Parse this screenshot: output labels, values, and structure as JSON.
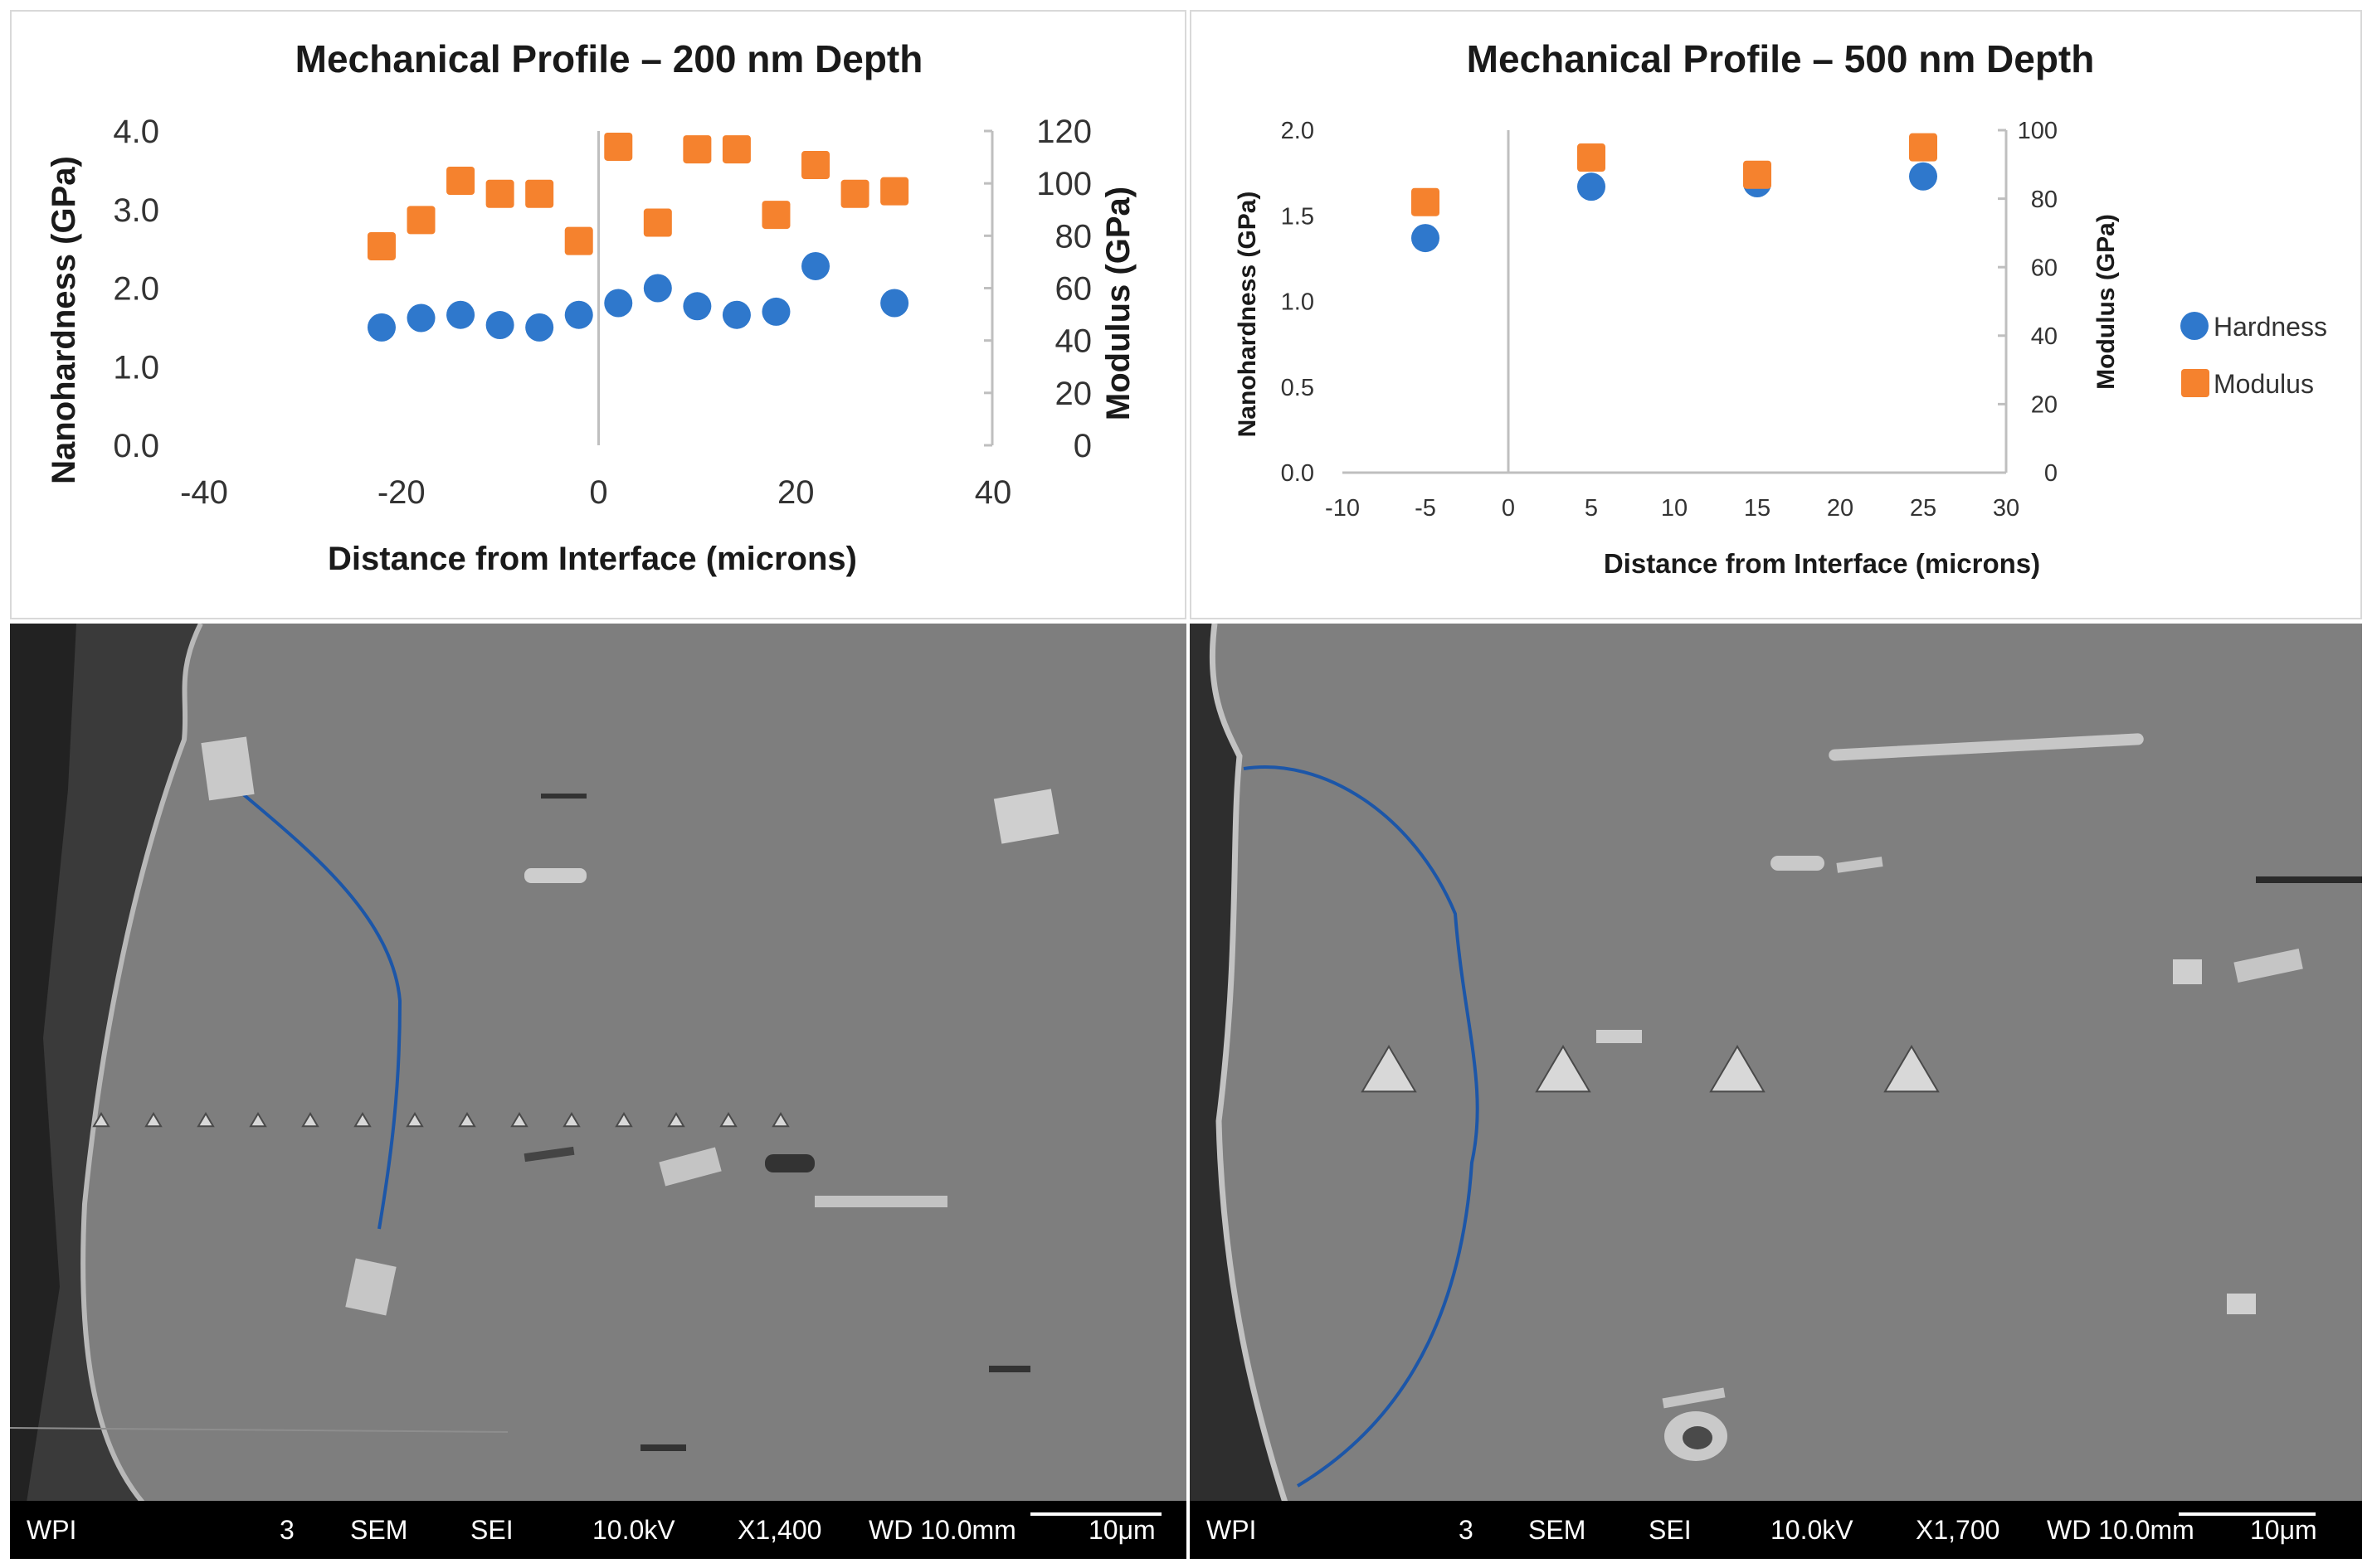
{
  "chart_data": [
    {
      "type": "scatter",
      "title": "Mechanical Profile – 200 nm Depth",
      "xlabel": "Distance from Interface (microns)",
      "ylabel": "Nanohardness (GPa)",
      "y2label": "Modulus (GPa)",
      "xlim": [
        -40,
        40
      ],
      "ylim": [
        0,
        4
      ],
      "y2lim": [
        0,
        120
      ],
      "x_ticks": [
        "-40",
        "-20",
        "0",
        "20",
        "40"
      ],
      "y_ticks": [
        "0.0",
        "1.0",
        "2.0",
        "3.0",
        "4.0"
      ],
      "y2_ticks": [
        "0",
        "20",
        "40",
        "60",
        "80",
        "100",
        "120"
      ],
      "grid": false,
      "series": [
        {
          "name": "Hardness",
          "axis": "left",
          "color": "#2f78cc",
          "marker": "circle",
          "x": [
            -22,
            -18,
            -14,
            -10,
            -6,
            -2,
            2,
            6,
            10,
            14,
            18,
            22,
            30
          ],
          "y": [
            1.5,
            1.62,
            1.66,
            1.53,
            1.5,
            1.66,
            1.81,
            2.0,
            1.77,
            1.66,
            1.7,
            2.28,
            1.81
          ]
        },
        {
          "name": "Modulus",
          "axis": "right",
          "color": "#f5822e",
          "marker": "square",
          "x": [
            -22,
            -18,
            -14,
            -10,
            -6,
            -2,
            2,
            6,
            10,
            14,
            18,
            22,
            26,
            30
          ],
          "y": [
            76,
            86,
            101,
            96,
            96,
            78,
            114,
            85,
            113,
            113,
            88,
            107,
            96,
            97
          ]
        }
      ]
    },
    {
      "type": "scatter",
      "title": "Mechanical Profile – 500 nm Depth",
      "xlabel": "Distance from Interface (microns)",
      "ylabel": "Nanohardness (GPa)",
      "y2label": "Modulus (GPa)",
      "xlim": [
        -10,
        30
      ],
      "ylim": [
        0,
        2
      ],
      "y2lim": [
        0,
        100
      ],
      "x_ticks": [
        "-10",
        "-5",
        "0",
        "5",
        "10",
        "15",
        "20",
        "25",
        "30"
      ],
      "y_ticks": [
        "0.0",
        "0.5",
        "1.0",
        "1.5",
        "2.0"
      ],
      "y2_ticks": [
        "0",
        "20",
        "40",
        "60",
        "80",
        "100"
      ],
      "grid": false,
      "legend_position": "right",
      "legend": [
        "Hardness",
        "Modulus"
      ],
      "series": [
        {
          "name": "Hardness",
          "axis": "left",
          "color": "#2f78cc",
          "marker": "circle",
          "x": [
            -5,
            5,
            15,
            25
          ],
          "y": [
            1.37,
            1.67,
            1.69,
            1.73
          ]
        },
        {
          "name": "Modulus",
          "axis": "right",
          "color": "#f5822e",
          "marker": "square",
          "x": [
            -5,
            5,
            15,
            25
          ],
          "y": [
            79,
            92,
            87,
            95
          ]
        }
      ]
    }
  ],
  "sem_images": [
    {
      "labels": [
        "WPI",
        "3",
        "SEM",
        "SEI",
        "10.0kV",
        "X1,400",
        "WD 10.0mm",
        "10μm"
      ],
      "indent_count": 14
    },
    {
      "labels": [
        "WPI",
        "3",
        "SEM",
        "SEI",
        "10.0kV",
        "X1,700",
        "WD 10.0mm",
        "10μm"
      ],
      "indent_count": 4
    }
  ]
}
